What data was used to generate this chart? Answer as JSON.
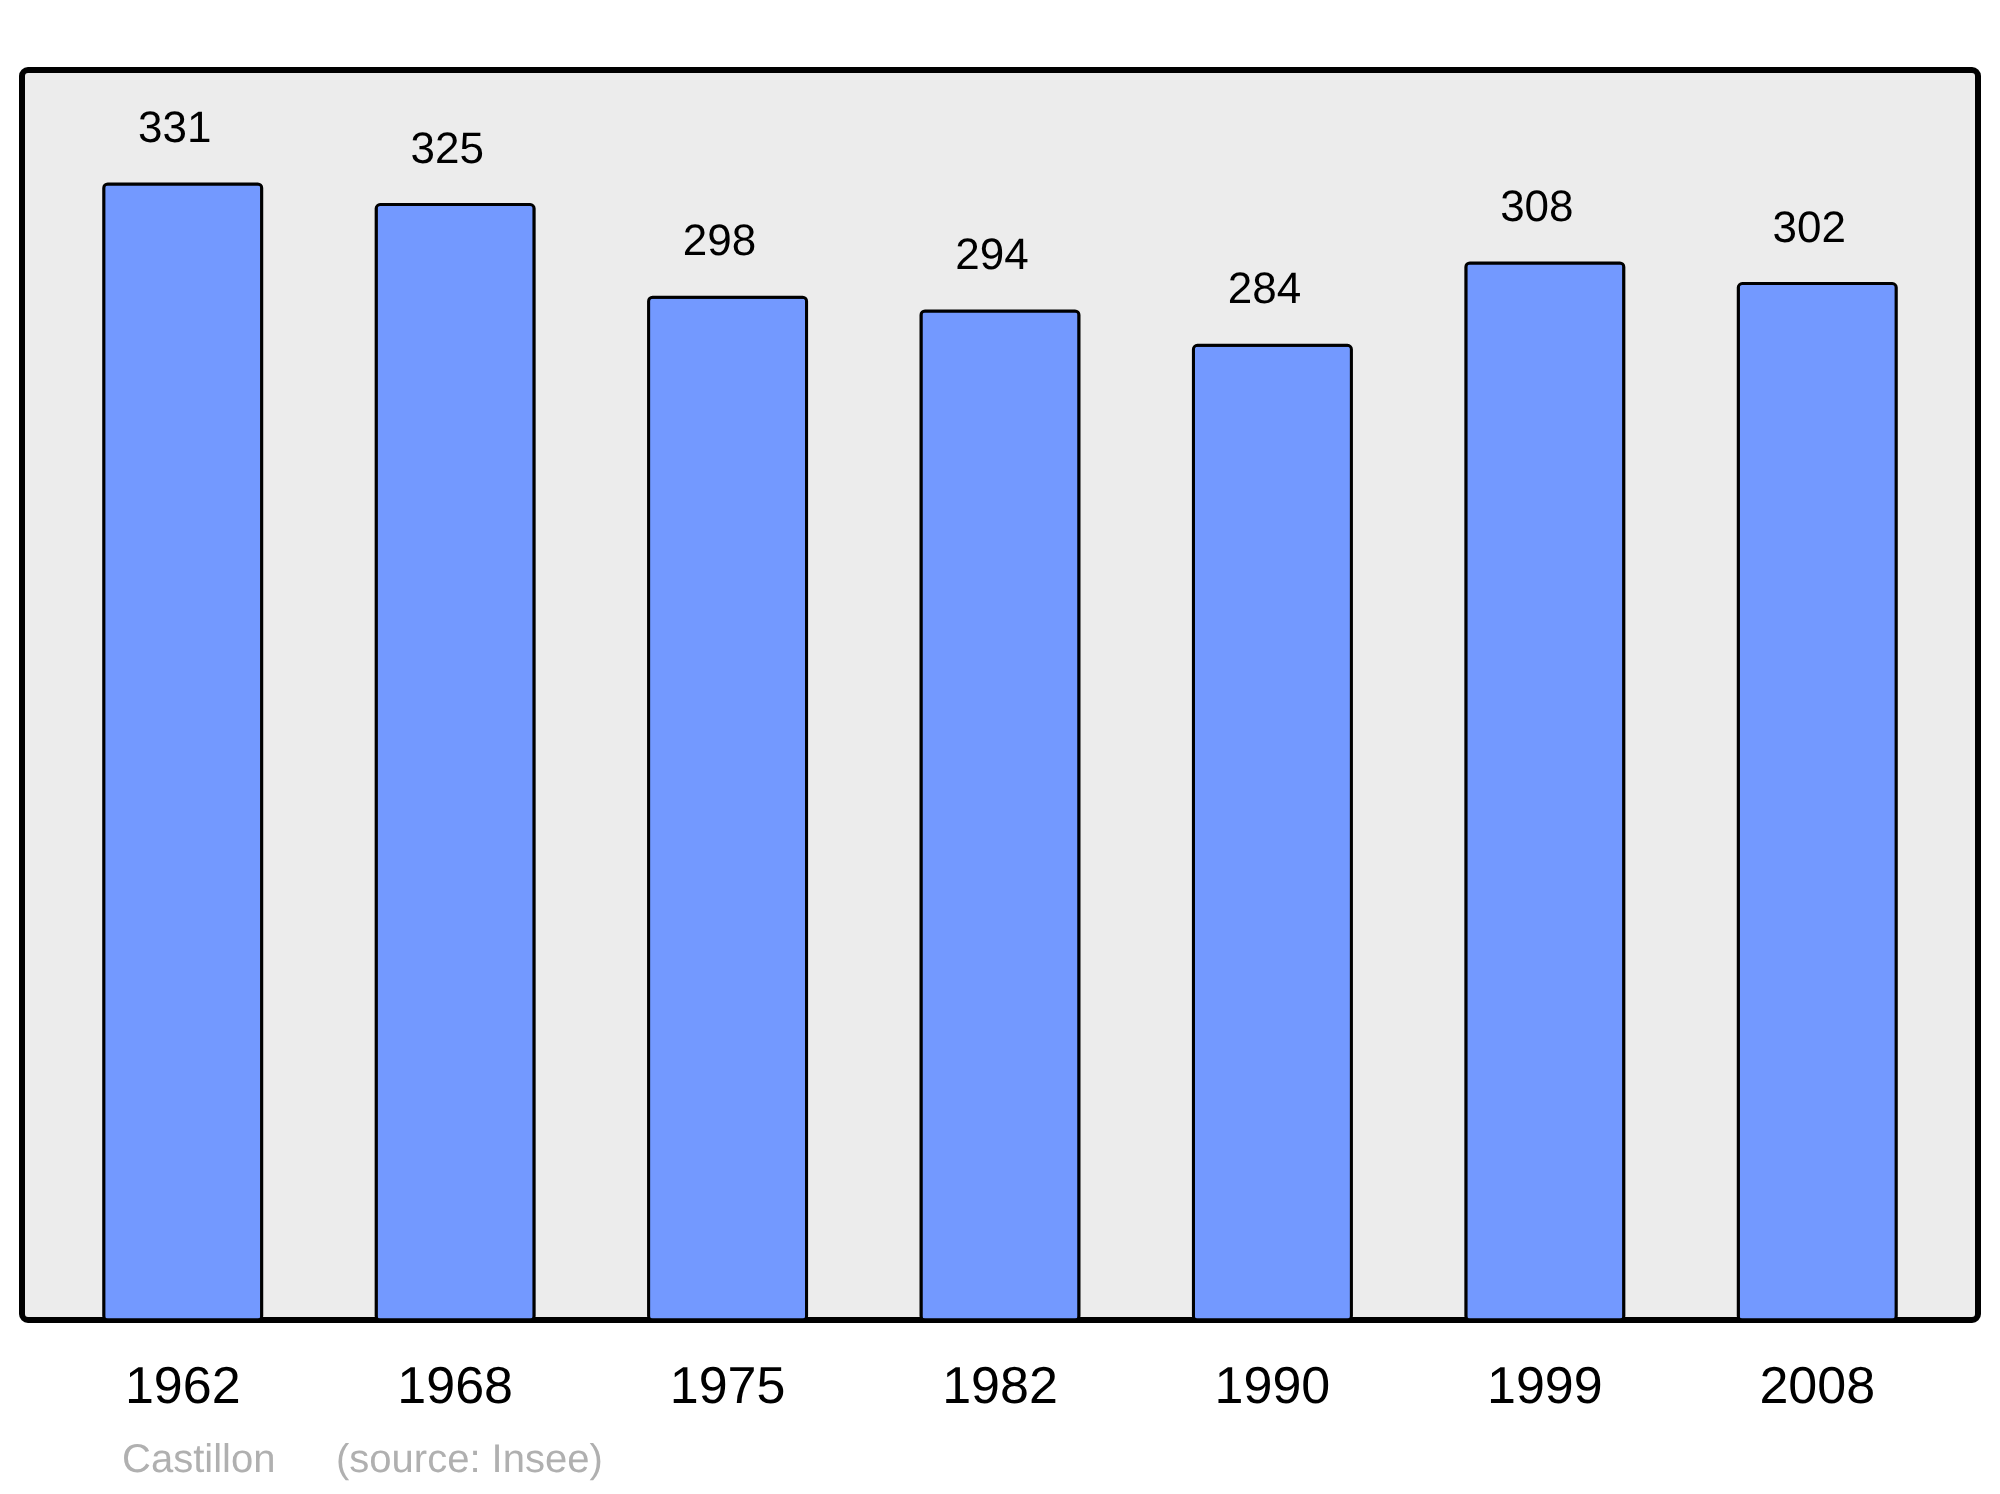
{
  "chart_data": {
    "type": "bar",
    "categories": [
      "1962",
      "1968",
      "1975",
      "1982",
      "1990",
      "1999",
      "2008"
    ],
    "values": [
      331,
      325,
      298,
      294,
      284,
      308,
      302
    ],
    "color": "#7399ff",
    "data_labels": true,
    "annotations": [
      "Castillon",
      "(source: Insee)"
    ]
  }
}
